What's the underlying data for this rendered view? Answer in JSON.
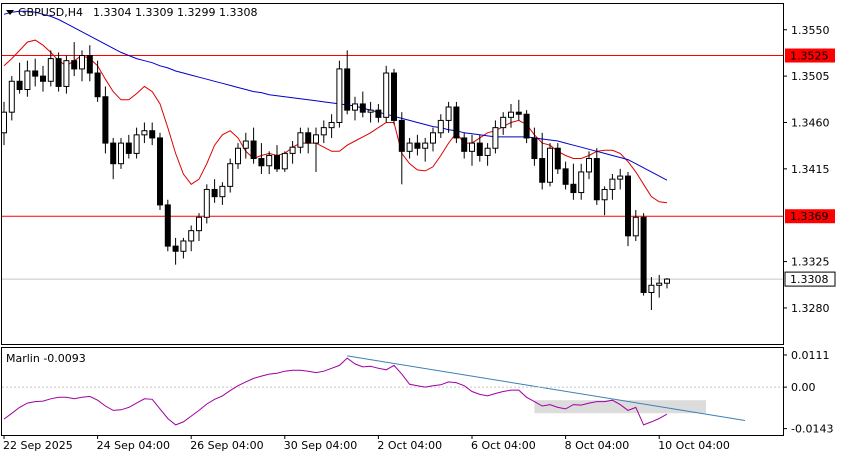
{
  "header": {
    "symbol_label": "GBPUSD,H4",
    "ohlc": "1.3304 1.3309 1.3299 1.3308"
  },
  "colors": {
    "price_box": "#000000",
    "ema_fast": "#dd0000",
    "ema_slow": "#0000cc",
    "level": "#ff0000",
    "marlin": "#a000a0",
    "trendline": "#3d7fb5",
    "zone": "#c0c0c0"
  },
  "chart_data": [
    {
      "type": "candlestick",
      "panel": "price",
      "ylim": [
        1.3245,
        1.3575
      ],
      "y_ticks": [
        "1.3550",
        "1.3505",
        "1.3460",
        "1.3415",
        "1.3325",
        "1.3280"
      ],
      "x_ticks": [
        "22 Sep 2025",
        "24 Sep 04:00",
        "26 Sep 04:00",
        "30 Sep 04:00",
        "2 Oct 04:00",
        "6 Oct 04:00",
        "8 Oct 04:00",
        "10 Oct 04:00"
      ],
      "horizontal_levels": [
        {
          "value": 1.3525,
          "label": "1.3525"
        },
        {
          "value": 1.3369,
          "label": "1.3369"
        }
      ],
      "current_price": {
        "value": 1.3308,
        "label": "1.3308"
      },
      "candles": [
        [
          1.345,
          1.348,
          1.3438,
          1.347
        ],
        [
          1.347,
          1.3505,
          1.3462,
          1.35
        ],
        [
          1.35,
          1.3518,
          1.3488,
          1.3492
        ],
        [
          1.3492,
          1.352,
          1.3485,
          1.351
        ],
        [
          1.351,
          1.3522,
          1.3495,
          1.3505
        ],
        [
          1.3505,
          1.3515,
          1.349,
          1.35
        ],
        [
          1.35,
          1.353,
          1.3495,
          1.3522
        ],
        [
          1.3522,
          1.3528,
          1.349,
          1.3495
        ],
        [
          1.3495,
          1.3525,
          1.3488,
          1.352
        ],
        [
          1.352,
          1.3538,
          1.3505,
          1.3512
        ],
        [
          1.3512,
          1.353,
          1.35,
          1.3525
        ],
        [
          1.3525,
          1.3535,
          1.35,
          1.3508
        ],
        [
          1.3508,
          1.352,
          1.348,
          1.3485
        ],
        [
          1.3485,
          1.3495,
          1.343,
          1.344
        ],
        [
          1.344,
          1.3445,
          1.3405,
          1.342
        ],
        [
          1.342,
          1.3445,
          1.3415,
          1.344
        ],
        [
          1.344,
          1.3448,
          1.3425,
          1.343
        ],
        [
          1.343,
          1.3455,
          1.3425,
          1.3448
        ],
        [
          1.3448,
          1.346,
          1.344,
          1.3452
        ],
        [
          1.3452,
          1.346,
          1.3438,
          1.3445
        ],
        [
          1.3445,
          1.345,
          1.3375,
          1.338
        ],
        [
          1.338,
          1.3385,
          1.3335,
          1.334
        ],
        [
          1.334,
          1.3348,
          1.3322,
          1.3335
        ],
        [
          1.3335,
          1.3348,
          1.3328,
          1.3345
        ],
        [
          1.3345,
          1.336,
          1.3335,
          1.3355
        ],
        [
          1.3355,
          1.3372,
          1.3345,
          1.3368
        ],
        [
          1.3368,
          1.34,
          1.3362,
          1.3395
        ],
        [
          1.3395,
          1.3405,
          1.3382,
          1.3388
        ],
        [
          1.3388,
          1.3402,
          1.338,
          1.3398
        ],
        [
          1.3398,
          1.3425,
          1.3392,
          1.342
        ],
        [
          1.342,
          1.344,
          1.3415,
          1.3435
        ],
        [
          1.3435,
          1.345,
          1.3425,
          1.3442
        ],
        [
          1.3442,
          1.3455,
          1.342,
          1.3425
        ],
        [
          1.3425,
          1.344,
          1.341,
          1.3418
        ],
        [
          1.3418,
          1.3432,
          1.341,
          1.3428
        ],
        [
          1.3428,
          1.3438,
          1.3412,
          1.3415
        ],
        [
          1.3415,
          1.3432,
          1.3412,
          1.343
        ],
        [
          1.343,
          1.3442,
          1.342,
          1.3436
        ],
        [
          1.3436,
          1.3455,
          1.343,
          1.345
        ],
        [
          1.345,
          1.3455,
          1.343,
          1.344
        ],
        [
          1.344,
          1.3455,
          1.3412,
          1.3448
        ],
        [
          1.3448,
          1.3462,
          1.344,
          1.3455
        ],
        [
          1.3455,
          1.3468,
          1.3445,
          1.346
        ],
        [
          1.346,
          1.352,
          1.3455,
          1.3512
        ],
        [
          1.3512,
          1.353,
          1.3468,
          1.3472
        ],
        [
          1.3472,
          1.3485,
          1.3462,
          1.3478
        ],
        [
          1.3478,
          1.349,
          1.3465,
          1.347
        ],
        [
          1.347,
          1.348,
          1.346,
          1.3472
        ],
        [
          1.3472,
          1.3478,
          1.346,
          1.3465
        ],
        [
          1.3465,
          1.3515,
          1.346,
          1.3508
        ],
        [
          1.3508,
          1.3512,
          1.3458,
          1.3462
        ],
        [
          1.3462,
          1.347,
          1.34,
          1.3432
        ],
        [
          1.3432,
          1.3445,
          1.3425,
          1.344
        ],
        [
          1.344,
          1.3448,
          1.3428,
          1.3435
        ],
        [
          1.3435,
          1.3445,
          1.3422,
          1.344
        ],
        [
          1.344,
          1.3455,
          1.3432,
          1.345
        ],
        [
          1.345,
          1.3468,
          1.3445,
          1.3462
        ],
        [
          1.3462,
          1.348,
          1.345,
          1.3475
        ],
        [
          1.3475,
          1.348,
          1.344,
          1.3445
        ],
        [
          1.3445,
          1.345,
          1.3425,
          1.3432
        ],
        [
          1.3432,
          1.3448,
          1.3418,
          1.344
        ],
        [
          1.344,
          1.3448,
          1.3422,
          1.3428
        ],
        [
          1.3428,
          1.344,
          1.3418,
          1.3435
        ],
        [
          1.3435,
          1.3462,
          1.343,
          1.3455
        ],
        [
          1.3455,
          1.347,
          1.3448,
          1.3465
        ],
        [
          1.3465,
          1.3478,
          1.3455,
          1.347
        ],
        [
          1.347,
          1.3482,
          1.3462,
          1.3468
        ],
        [
          1.3468,
          1.3472,
          1.344,
          1.3445
        ],
        [
          1.3445,
          1.3455,
          1.3418,
          1.3425
        ],
        [
          1.3425,
          1.345,
          1.3395,
          1.3402
        ],
        [
          1.3402,
          1.344,
          1.3398,
          1.3435
        ],
        [
          1.3435,
          1.344,
          1.341,
          1.3415
        ],
        [
          1.3415,
          1.3422,
          1.3395,
          1.34
        ],
        [
          1.34,
          1.342,
          1.3385,
          1.3392
        ],
        [
          1.3392,
          1.342,
          1.3385,
          1.3412
        ],
        [
          1.3412,
          1.3432,
          1.3405,
          1.3425
        ],
        [
          1.3425,
          1.3435,
          1.338,
          1.3385
        ],
        [
          1.3385,
          1.3398,
          1.337,
          1.3395
        ],
        [
          1.3395,
          1.341,
          1.3385,
          1.3405
        ],
        [
          1.3405,
          1.3415,
          1.3395,
          1.3408
        ],
        [
          1.3408,
          1.3412,
          1.334,
          1.335
        ],
        [
          1.335,
          1.3375,
          1.3345,
          1.3368
        ],
        [
          1.3368,
          1.3372,
          1.3292,
          1.3295
        ],
        [
          1.3295,
          1.331,
          1.3278,
          1.3302
        ],
        [
          1.3302,
          1.3312,
          1.329,
          1.3304
        ],
        [
          1.3304,
          1.3309,
          1.3299,
          1.3308
        ]
      ],
      "series": [
        {
          "name": "",
          "style": "ema_fast",
          "values": [
            1.3515,
            1.3522,
            1.353,
            1.3538,
            1.354,
            1.3535,
            1.3528,
            1.352,
            1.3515,
            1.352,
            1.3525,
            1.3522,
            1.3515,
            1.3502,
            1.349,
            1.3482,
            1.3482,
            1.3488,
            1.3495,
            1.349,
            1.3478,
            1.3455,
            1.343,
            1.341,
            1.34,
            1.3405,
            1.342,
            1.3438,
            1.3448,
            1.3452,
            1.3445,
            1.3432,
            1.3425,
            1.3428,
            1.343,
            1.3428,
            1.343,
            1.3436,
            1.344,
            1.344,
            1.344,
            1.3436,
            1.3432,
            1.3432,
            1.3438,
            1.3442,
            1.3446,
            1.345,
            1.3455,
            1.346,
            1.346,
            1.343,
            1.342,
            1.3414,
            1.3413,
            1.3417,
            1.3428,
            1.344,
            1.345,
            1.344,
            1.344,
            1.3445,
            1.345,
            1.3452,
            1.3456,
            1.346,
            1.3462,
            1.3458,
            1.3448,
            1.344,
            1.3438,
            1.3432,
            1.3428,
            1.3425,
            1.3425,
            1.3428,
            1.3432,
            1.3433,
            1.3433,
            1.343,
            1.3422,
            1.3412,
            1.34,
            1.3388,
            1.3383,
            1.3382
          ]
        },
        {
          "name": "",
          "style": "ema_slow",
          "values": [
            1.3565,
            1.3567,
            1.3568,
            1.3568,
            1.3567,
            1.3565,
            1.3563,
            1.356,
            1.3556,
            1.3552,
            1.3548,
            1.3544,
            1.354,
            1.3536,
            1.3532,
            1.3528,
            1.3525,
            1.3522,
            1.352,
            1.3518,
            1.3515,
            1.3513,
            1.351,
            1.3508,
            1.3506,
            1.3504,
            1.3502,
            1.35,
            1.3498,
            1.3496,
            1.3494,
            1.3492,
            1.349,
            1.3489,
            1.3487,
            1.3486,
            1.3485,
            1.3484,
            1.3483,
            1.3482,
            1.3481,
            1.348,
            1.3479,
            1.3478,
            1.3477,
            1.3476,
            1.3474,
            1.3472,
            1.347,
            1.3468,
            1.3466,
            1.3464,
            1.3462,
            1.346,
            1.3458,
            1.3456,
            1.3455,
            1.3453,
            1.3452,
            1.345,
            1.3449,
            1.3448,
            1.3447,
            1.3446,
            1.3446,
            1.3446,
            1.3446,
            1.3446,
            1.3445,
            1.3444,
            1.3443,
            1.3442,
            1.344,
            1.3438,
            1.3436,
            1.3434,
            1.3432,
            1.343,
            1.3428,
            1.3426,
            1.3424,
            1.342,
            1.3416,
            1.3412,
            1.3408,
            1.3404
          ]
        }
      ]
    },
    {
      "type": "line",
      "panel": "indicator",
      "title": "Marlin -0.0093",
      "ylim": [
        -0.0165,
        0.0135
      ],
      "y_ticks": [
        "0.0111",
        "0.00",
        "-0.0143"
      ],
      "series": [
        {
          "name": "",
          "style": "marlin",
          "values": [
            -0.011,
            -0.009,
            -0.007,
            -0.0055,
            -0.005,
            -0.0048,
            -0.004,
            -0.0035,
            -0.0035,
            -0.004,
            -0.0035,
            -0.0032,
            -0.0045,
            -0.0065,
            -0.008,
            -0.0078,
            -0.007,
            -0.0055,
            -0.004,
            -0.0042,
            -0.0075,
            -0.0108,
            -0.013,
            -0.012,
            -0.01,
            -0.008,
            -0.0058,
            -0.0042,
            -0.003,
            -0.0012,
            0.0005,
            0.0018,
            0.003,
            0.0038,
            0.0045,
            0.0048,
            0.0055,
            0.0058,
            0.0058,
            0.0055,
            0.005,
            0.0055,
            0.0065,
            0.0075,
            0.01,
            0.008,
            0.007,
            0.0072,
            0.0065,
            0.006,
            0.0075,
            0.0045,
            0.001,
            0.0005,
            0.0,
            0.0005,
            0.0008,
            0.0018,
            0.0015,
            0.0005,
            -0.0015,
            -0.0025,
            -0.003,
            -0.0022,
            -0.0015,
            -0.001,
            -0.001,
            -0.0035,
            -0.005,
            -0.0065,
            -0.006,
            -0.007,
            -0.0075,
            -0.006,
            -0.0062,
            -0.0055,
            -0.005,
            -0.005,
            -0.0045,
            -0.006,
            -0.008,
            -0.007,
            -0.013,
            -0.012,
            -0.0108,
            -0.0093
          ]
        }
      ],
      "trendline": {
        "from": [
          44,
          0.0108
        ],
        "to": [
          95,
          -0.0115
        ]
      },
      "zone": {
        "from_bar": 68,
        "to_bar": 90,
        "ymin": -0.009,
        "ymax": -0.0045
      }
    }
  ]
}
